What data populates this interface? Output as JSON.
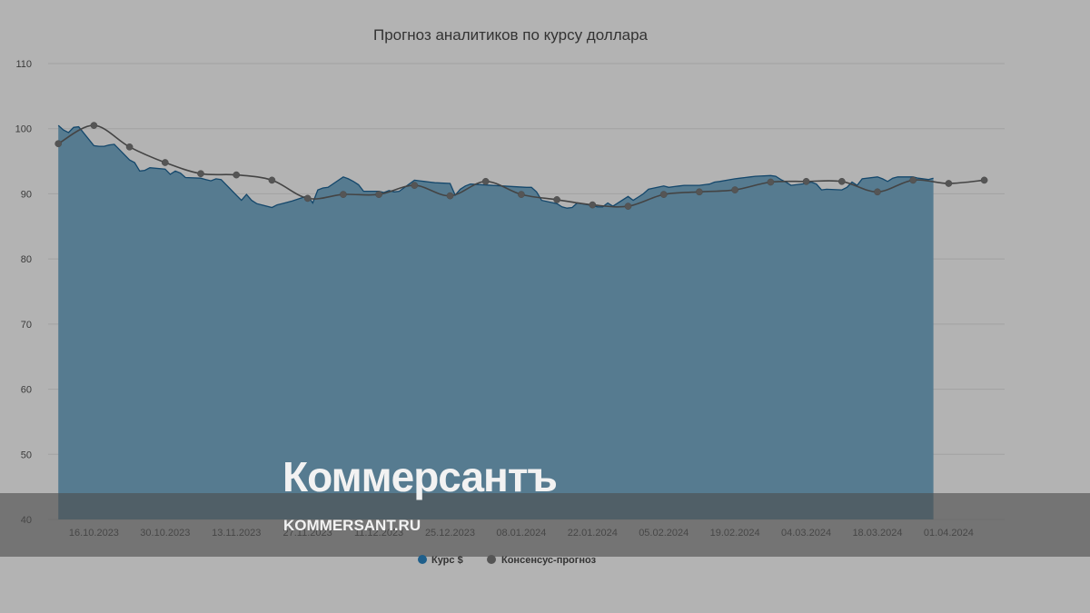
{
  "chart_data": {
    "type": "area",
    "title": "Прогноз аналитиков по курсу доллара",
    "ylim": [
      40,
      110
    ],
    "y_ticks": [
      40,
      50,
      60,
      70,
      80,
      90,
      100,
      110
    ],
    "x_tick_labels": [
      "16.10.2023",
      "30.10.2023",
      "13.11.2023",
      "27.11.2023",
      "11.12.2023",
      "25.12.2023",
      "08.01.2024",
      "22.01.2024",
      "05.02.2024",
      "19.02.2024",
      "04.03.2024",
      "18.03.2024",
      "01.04.2024"
    ],
    "grid": true,
    "legend_position": "bottom-center",
    "series": [
      {
        "name": "Курс $",
        "kind": "area",
        "color": "#1f5f8b",
        "x": [
          "2023-10-09",
          "2023-10-10",
          "2023-10-11",
          "2023-10-12",
          "2023-10-13",
          "2023-10-16",
          "2023-10-17",
          "2023-10-18",
          "2023-10-19",
          "2023-10-20",
          "2023-10-23",
          "2023-10-24",
          "2023-10-25",
          "2023-10-26",
          "2023-10-27",
          "2023-10-30",
          "2023-10-31",
          "2023-11-01",
          "2023-11-02",
          "2023-11-03",
          "2023-11-06",
          "2023-11-07",
          "2023-11-08",
          "2023-11-09",
          "2023-11-10",
          "2023-11-13",
          "2023-11-14",
          "2023-11-15",
          "2023-11-16",
          "2023-11-17",
          "2023-11-20",
          "2023-11-21",
          "2023-11-22",
          "2023-11-23",
          "2023-11-24",
          "2023-11-27",
          "2023-11-28",
          "2023-11-29",
          "2023-11-30",
          "2023-12-01",
          "2023-12-04",
          "2023-12-05",
          "2023-12-06",
          "2023-12-07",
          "2023-12-08",
          "2023-12-11",
          "2023-12-12",
          "2023-12-13",
          "2023-12-14",
          "2023-12-15",
          "2023-12-18",
          "2023-12-19",
          "2023-12-20",
          "2023-12-21",
          "2023-12-22",
          "2023-12-25",
          "2023-12-26",
          "2023-12-27",
          "2023-12-28",
          "2023-12-29",
          "2024-01-09",
          "2024-01-10",
          "2024-01-11",
          "2024-01-12",
          "2024-01-15",
          "2024-01-16",
          "2024-01-17",
          "2024-01-18",
          "2024-01-19",
          "2024-01-22",
          "2024-01-23",
          "2024-01-24",
          "2024-01-25",
          "2024-01-26",
          "2024-01-29",
          "2024-01-30",
          "2024-01-31",
          "2024-02-01",
          "2024-02-02",
          "2024-02-05",
          "2024-02-06",
          "2024-02-07",
          "2024-02-08",
          "2024-02-09",
          "2024-02-12",
          "2024-02-13",
          "2024-02-14",
          "2024-02-15",
          "2024-02-16",
          "2024-02-19",
          "2024-02-20",
          "2024-02-21",
          "2024-02-22",
          "2024-02-23",
          "2024-02-26",
          "2024-02-27",
          "2024-02-28",
          "2024-02-29",
          "2024-03-01",
          "2024-03-04",
          "2024-03-05",
          "2024-03-06",
          "2024-03-07",
          "2024-03-08",
          "2024-03-11",
          "2024-03-12",
          "2024-03-13",
          "2024-03-14",
          "2024-03-15",
          "2024-03-18",
          "2024-03-19",
          "2024-03-20",
          "2024-03-21",
          "2024-03-22",
          "2024-03-25",
          "2024-03-26",
          "2024-03-27",
          "2024-03-28",
          "2024-03-29"
        ],
        "values": [
          100.5,
          99.8,
          99.4,
          100.2,
          100.3,
          97.4,
          97.3,
          97.3,
          97.5,
          97.6,
          95.2,
          94.8,
          93.5,
          93.6,
          94.0,
          93.8,
          93.0,
          93.5,
          93.2,
          92.5,
          92.4,
          92.2,
          92.0,
          92.3,
          92.2,
          89.8,
          89.0,
          89.9,
          89.0,
          88.5,
          87.9,
          88.3,
          88.5,
          88.7,
          88.9,
          89.7,
          88.6,
          90.6,
          90.9,
          91.0,
          92.6,
          92.3,
          91.9,
          91.4,
          90.4,
          90.4,
          90.2,
          90.5,
          90.3,
          90.4,
          92.1,
          92.0,
          91.9,
          91.8,
          91.7,
          91.6,
          89.8,
          90.7,
          91.2,
          91.5,
          91.0,
          91.0,
          90.3,
          89.0,
          88.5,
          88.0,
          87.8,
          87.9,
          88.6,
          88.2,
          88.0,
          88.0,
          88.6,
          88.1,
          89.6,
          89.0,
          89.5,
          90.0,
          90.7,
          91.2,
          91.0,
          91.1,
          91.2,
          91.3,
          91.3,
          91.4,
          91.5,
          91.8,
          91.9,
          92.3,
          92.4,
          92.5,
          92.6,
          92.7,
          92.8,
          92.7,
          92.2,
          91.8,
          91.3,
          91.6,
          91.8,
          91.5,
          90.6,
          90.7,
          90.6,
          91.0,
          91.8,
          91.3,
          92.3,
          92.6,
          92.3,
          91.9,
          92.4,
          92.6,
          92.6,
          92.4,
          92.3,
          92.2,
          92.4
        ]
      },
      {
        "name": "Консенсус-прогноз",
        "kind": "line",
        "color": "#555555",
        "x": [
          "2023-10-09",
          "2023-10-16",
          "2023-10-23",
          "2023-10-30",
          "2023-11-06",
          "2023-11-13",
          "2023-11-20",
          "2023-11-27",
          "2023-12-04",
          "2023-12-11",
          "2023-12-18",
          "2023-12-25",
          "2024-01-01",
          "2024-01-08",
          "2024-01-15",
          "2024-01-22",
          "2024-01-29",
          "2024-02-05",
          "2024-02-12",
          "2024-02-19",
          "2024-02-26",
          "2024-03-04",
          "2024-03-11",
          "2024-03-18",
          "2024-03-25",
          "2024-04-01",
          "2024-04-08"
        ],
        "values": [
          97.7,
          100.5,
          97.2,
          94.8,
          93.1,
          92.9,
          92.1,
          89.3,
          89.9,
          89.9,
          91.3,
          89.7,
          91.9,
          89.9,
          89.1,
          88.3,
          88.1,
          89.9,
          90.3,
          90.6,
          91.8,
          91.9,
          91.9,
          90.3,
          92.1,
          91.6,
          92.1
        ]
      }
    ]
  },
  "watermark": {
    "logo": "Коммерсантъ",
    "url": "KOMMERSANT.RU"
  }
}
